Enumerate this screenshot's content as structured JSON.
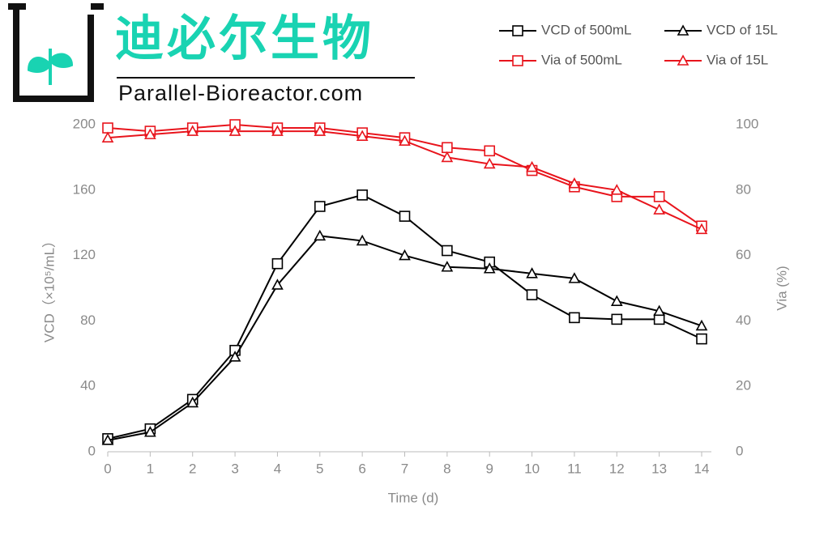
{
  "logo": {
    "name": "迪必尔生物",
    "url": "Parallel-Bioreactor.com"
  },
  "chart_data": {
    "type": "line",
    "x": [
      0,
      1,
      2,
      3,
      4,
      5,
      6,
      7,
      8,
      9,
      10,
      11,
      12,
      13,
      14
    ],
    "xlabel": "Time (d)",
    "ylabel": "VCD（×10⁵/mL）",
    "y2label": "Via (%)",
    "xlim": [
      0,
      14
    ],
    "xticks": [
      0,
      1,
      2,
      3,
      4,
      5,
      6,
      7,
      8,
      9,
      10,
      11,
      12,
      13,
      14
    ],
    "ylim": [
      0,
      200
    ],
    "yticks": [
      0,
      40,
      80,
      120,
      160,
      200
    ],
    "y2lim": [
      0,
      100
    ],
    "y2ticks": [
      0,
      20,
      40,
      60,
      80,
      100
    ],
    "grid": false,
    "legend": "top-right",
    "series": [
      {
        "name": "VCD of 500mL",
        "color": "#000000",
        "marker": "square",
        "values": [
          8,
          14,
          32,
          62,
          115,
          150,
          157,
          144,
          123,
          116,
          96,
          82,
          81,
          81,
          69
        ]
      },
      {
        "name": "VCD of 15L",
        "color": "#000000",
        "marker": "triangle",
        "values": [
          7,
          12,
          30,
          58,
          102,
          132,
          129,
          120,
          113,
          112,
          109,
          106,
          92,
          86,
          77
        ]
      },
      {
        "name": "Via of 500mL",
        "color": "#e8141c",
        "marker": "square",
        "axis": "y2",
        "values": [
          99,
          98,
          99,
          100,
          99,
          99,
          97.5,
          96,
          93,
          92,
          86,
          81,
          78,
          78,
          69
        ]
      },
      {
        "name": "Via of 15L",
        "color": "#e8141c",
        "marker": "triangle",
        "axis": "y2",
        "values": [
          96,
          97,
          98,
          98,
          98,
          98,
          96.5,
          95,
          90,
          88,
          87,
          82,
          80,
          74,
          68
        ]
      }
    ]
  }
}
